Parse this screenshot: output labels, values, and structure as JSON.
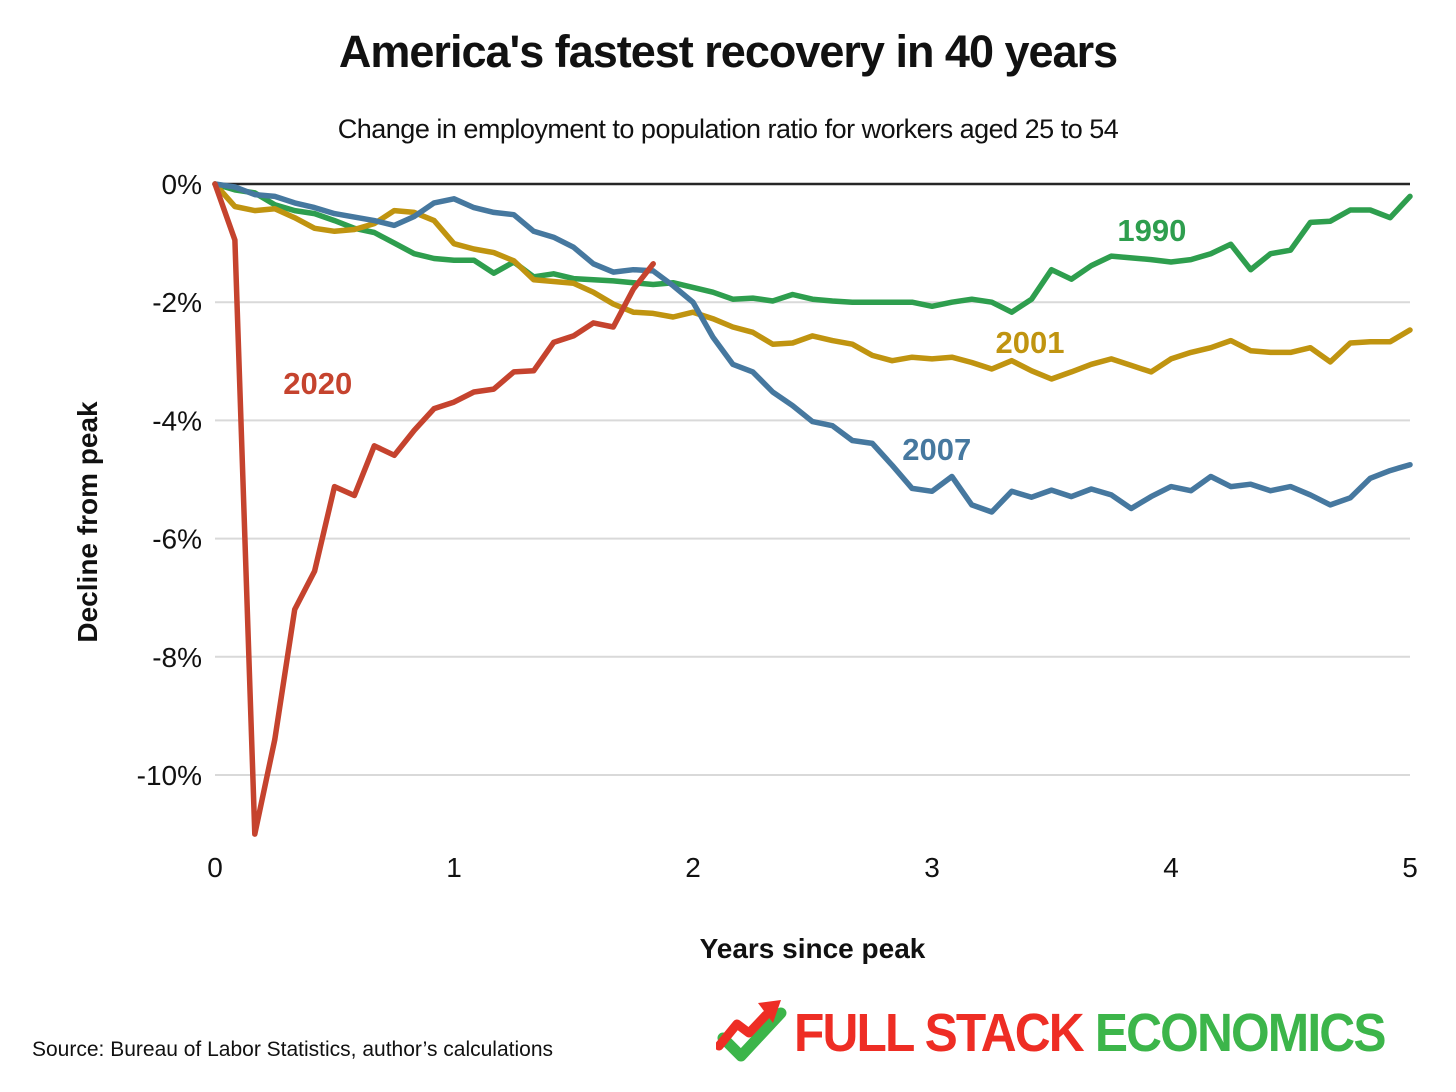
{
  "header": {
    "title": "America's fastest recovery in 40 years",
    "subtitle": "Change in employment to population ratio for workers aged 25 to 54"
  },
  "chart_data": {
    "type": "line",
    "title": "America's fastest recovery in 40 years",
    "subtitle": "Change in employment to population ratio for workers aged 25 to 54",
    "xlabel": "Years since peak",
    "ylabel": "Decline from peak",
    "xlim": [
      0,
      5
    ],
    "ylim": [
      -11.2,
      0
    ],
    "grid": "horizontal",
    "x_ticks": [
      0,
      1,
      2,
      3,
      4,
      5
    ],
    "y_ticks": [
      {
        "label": "0%",
        "value": 0
      },
      {
        "label": "-2%",
        "value": -2
      },
      {
        "label": "-4%",
        "value": -4
      },
      {
        "label": "-6%",
        "value": -6
      },
      {
        "label": "-8%",
        "value": -8
      },
      {
        "label": "-10%",
        "value": -10
      }
    ],
    "cadence": "monthly (one point per month since peak)",
    "series": [
      {
        "name": "1990",
        "color": "#2e9e4e",
        "label": {
          "text": "1990",
          "year": 3.92,
          "pct": -0.78
        },
        "values": [
          0,
          -0.1,
          -0.15,
          -0.35,
          -0.45,
          -0.5,
          -0.62,
          -0.75,
          -0.82,
          -1.0,
          -1.18,
          -1.26,
          -1.29,
          -1.29,
          -1.51,
          -1.32,
          -1.57,
          -1.52,
          -1.6,
          -1.62,
          -1.64,
          -1.67,
          -1.7,
          -1.67,
          -1.75,
          -1.83,
          -1.95,
          -1.93,
          -1.98,
          -1.87,
          -1.95,
          -1.98,
          -2.0,
          -2.0,
          -2.0,
          -2.0,
          -2.07,
          -2.0,
          -1.95,
          -2.0,
          -2.17,
          -1.95,
          -1.45,
          -1.61,
          -1.38,
          -1.22,
          -1.25,
          -1.28,
          -1.32,
          -1.28,
          -1.18,
          -1.02,
          -1.45,
          -1.18,
          -1.12,
          -0.65,
          -0.63,
          -0.44,
          -0.44,
          -0.57,
          -0.21
        ]
      },
      {
        "name": "2001",
        "color": "#c09410",
        "label": {
          "text": "2001",
          "year": 3.41,
          "pct": -2.67
        },
        "values": [
          0,
          -0.38,
          -0.45,
          -0.42,
          -0.57,
          -0.75,
          -0.8,
          -0.77,
          -0.67,
          -0.45,
          -0.48,
          -0.62,
          -1.01,
          -1.1,
          -1.16,
          -1.3,
          -1.62,
          -1.65,
          -1.68,
          -1.83,
          -2.03,
          -2.17,
          -2.19,
          -2.25,
          -2.17,
          -2.28,
          -2.42,
          -2.51,
          -2.71,
          -2.69,
          -2.57,
          -2.65,
          -2.71,
          -2.9,
          -2.99,
          -2.93,
          -2.96,
          -2.93,
          -3.02,
          -3.13,
          -2.99,
          -3.16,
          -3.3,
          -3.18,
          -3.05,
          -2.96,
          -3.07,
          -3.18,
          -2.96,
          -2.85,
          -2.77,
          -2.65,
          -2.82,
          -2.85,
          -2.85,
          -2.77,
          -3.01,
          -2.69,
          -2.67,
          -2.67,
          -2.47
        ]
      },
      {
        "name": "2007",
        "color": "#46789f",
        "label": {
          "text": "2007",
          "year": 3.02,
          "pct": -4.48
        },
        "values": [
          0,
          -0.05,
          -0.18,
          -0.21,
          -0.32,
          -0.4,
          -0.5,
          -0.56,
          -0.62,
          -0.7,
          -0.55,
          -0.32,
          -0.25,
          -0.4,
          -0.48,
          -0.52,
          -0.8,
          -0.9,
          -1.07,
          -1.35,
          -1.49,
          -1.45,
          -1.47,
          -1.72,
          -2.0,
          -2.59,
          -3.05,
          -3.18,
          -3.52,
          -3.75,
          -4.02,
          -4.09,
          -4.34,
          -4.39,
          -4.76,
          -5.15,
          -5.2,
          -4.95,
          -5.43,
          -5.55,
          -5.2,
          -5.3,
          -5.18,
          -5.29,
          -5.16,
          -5.26,
          -5.49,
          -5.29,
          -5.12,
          -5.19,
          -4.95,
          -5.12,
          -5.08,
          -5.19,
          -5.12,
          -5.26,
          -5.43,
          -5.31,
          -4.98,
          -4.85,
          -4.75
        ]
      },
      {
        "name": "2020",
        "color": "#c5432e",
        "label": {
          "text": "2020",
          "year": 0.43,
          "pct": -3.37
        },
        "values": [
          0,
          -0.95,
          -11.0,
          -9.4,
          -7.2,
          -6.55,
          -5.12,
          -5.27,
          -4.43,
          -4.59,
          -4.17,
          -3.8,
          -3.69,
          -3.52,
          -3.47,
          -3.18,
          -3.16,
          -2.68,
          -2.57,
          -2.35,
          -2.42,
          -1.78,
          -1.35
        ]
      }
    ]
  },
  "axes": {
    "xlabel": "Years since peak",
    "ylabel": "Decline from peak"
  },
  "footer": {
    "source": "Source: Bureau of Labor Statistics, author’s calculations",
    "logo": {
      "icon": "trend-arrow-check-icon",
      "part1": "FULL STACK",
      "part2": "ECONOMICS",
      "part1_color": "#ee2d24",
      "part2_color": "#3cb54a"
    }
  },
  "colors": {
    "zero_line": "#262626",
    "gridline": "#d9d9d9",
    "text": "#111111"
  }
}
